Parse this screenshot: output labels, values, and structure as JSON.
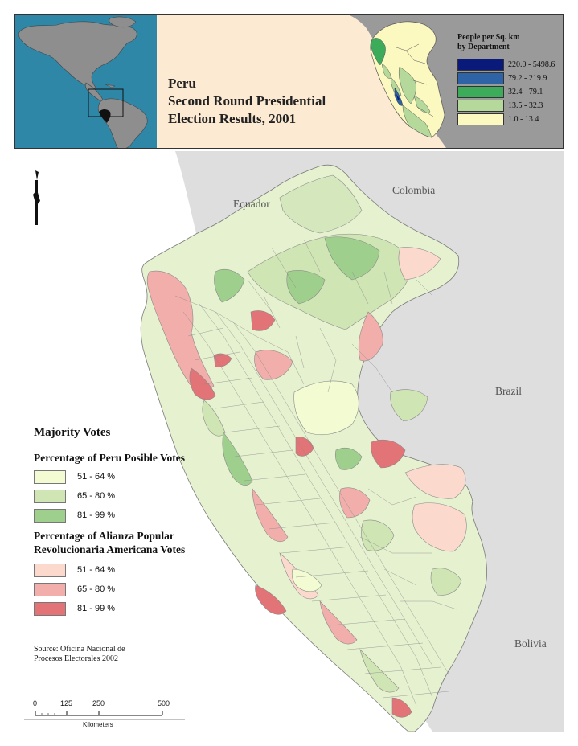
{
  "header": {
    "title_lines": [
      "Peru",
      "Second Round Presidential",
      "Election Results, 2001"
    ]
  },
  "density_legend": {
    "title_lines": [
      "People per Sq. km",
      "by Department"
    ],
    "classes": [
      {
        "label": "220.0 - 5498.6",
        "color": "#0a1a7a"
      },
      {
        "label": "79.2 - 219.9",
        "color": "#2e63a6"
      },
      {
        "label": "32.4 - 79.1",
        "color": "#3cab5a"
      },
      {
        "label": "13.5 - 32.3",
        "color": "#b4d99a"
      },
      {
        "label": "1.0 - 13.4",
        "color": "#fbf8c0"
      }
    ]
  },
  "map": {
    "country_labels": [
      "Equador",
      "Colombia",
      "Brazil",
      "Bolivia"
    ],
    "colors": {
      "background": "#dedede",
      "ocean_inset": "#2f87a8",
      "header_bg": "#fcead3"
    }
  },
  "legend": {
    "title": "Majority Votes",
    "peru_posible": {
      "title": "Percentage of Peru Posible Votes",
      "classes": [
        {
          "label": "51 - 64 %",
          "color": "#f2fbd2"
        },
        {
          "label": "65 - 80 %",
          "color": "#cfe5b4"
        },
        {
          "label": "81 - 99 %",
          "color": "#9fcf8c"
        }
      ]
    },
    "apra": {
      "title_lines": [
        "Percentage of Alianza Popular",
        "Revolucionaria Americana Votes"
      ],
      "classes": [
        {
          "label": "51 - 64 %",
          "color": "#fbd9cc"
        },
        {
          "label": "65 - 80 %",
          "color": "#f1aeaa"
        },
        {
          "label": "81 - 99 %",
          "color": "#e27478"
        }
      ]
    }
  },
  "source": {
    "lines": [
      "Source: Oficina Nacional de",
      "Procesos Electorales 2002"
    ]
  },
  "scale_bar": {
    "ticks": [
      "0",
      "125",
      "250",
      "500"
    ],
    "unit": "Kilometers"
  },
  "north_arrow_icon": "north-arrow-icon"
}
